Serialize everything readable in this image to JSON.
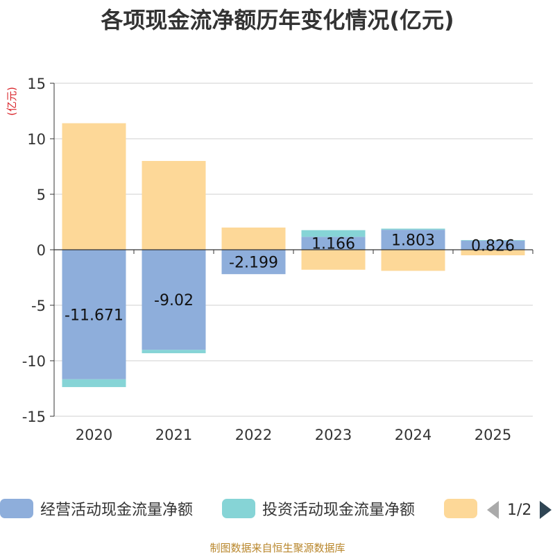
{
  "chart_data": {
    "type": "bar",
    "stacked": true,
    "title": "各项现金流净额历年变化情况(亿元)",
    "ylabel": "(亿元)",
    "xlabel": "",
    "categories": [
      "2020",
      "2021",
      "2022",
      "2023",
      "2024",
      "2025"
    ],
    "ylim": [
      -15,
      15
    ],
    "yticks": [
      -15,
      -10,
      -5,
      0,
      5,
      10,
      15
    ],
    "series": [
      {
        "name": "经营活动现金流量净额",
        "color": "#8eaedb",
        "values": [
          -11.671,
          -9.02,
          -2.199,
          1.166,
          1.803,
          0.826
        ],
        "labels": [
          "-11.671",
          "-9.02",
          "-2.199",
          "1.166",
          "1.803",
          "0.826"
        ]
      },
      {
        "name": "投资活动现金流量净额",
        "color": "#86d4d6",
        "values": [
          -0.7,
          -0.3,
          0.0,
          0.6,
          0.1,
          0.05
        ]
      },
      {
        "name": "",
        "color": "#fdd898",
        "values": [
          11.4,
          8.0,
          2.0,
          -1.8,
          -1.9,
          -0.5
        ]
      }
    ],
    "grid": true,
    "legend_position": "bottom"
  },
  "legend": {
    "pager_text": "1/2"
  },
  "source_note": "制图数据来自恒生聚源数据库"
}
